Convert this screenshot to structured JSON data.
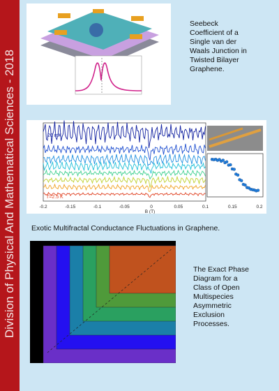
{
  "sidebar": {
    "title": "Division of Physical And Mathematical Sciences - 2018"
  },
  "panels": [
    {
      "caption": "Seebeck Coefficient of a Single van der Waals Junction in Twisted Bilayer Graphene."
    },
    {
      "caption": "Exotic Multifractal Conductance Fluctuations in Graphene.",
      "figure": {
        "xticks": [
          "-0.2",
          "-0.15",
          "-0.1",
          "-0.05",
          "0",
          "0.05",
          "0.1",
          "0.15",
          "0.2"
        ],
        "xlabel": "B (T)",
        "labels": [
          "20 mK",
          "T=2.5 K"
        ]
      }
    },
    {
      "caption": "The Exact Phase Diagram for a Class of Open Multispecies Asymmetric Exclusion Processes."
    }
  ]
}
